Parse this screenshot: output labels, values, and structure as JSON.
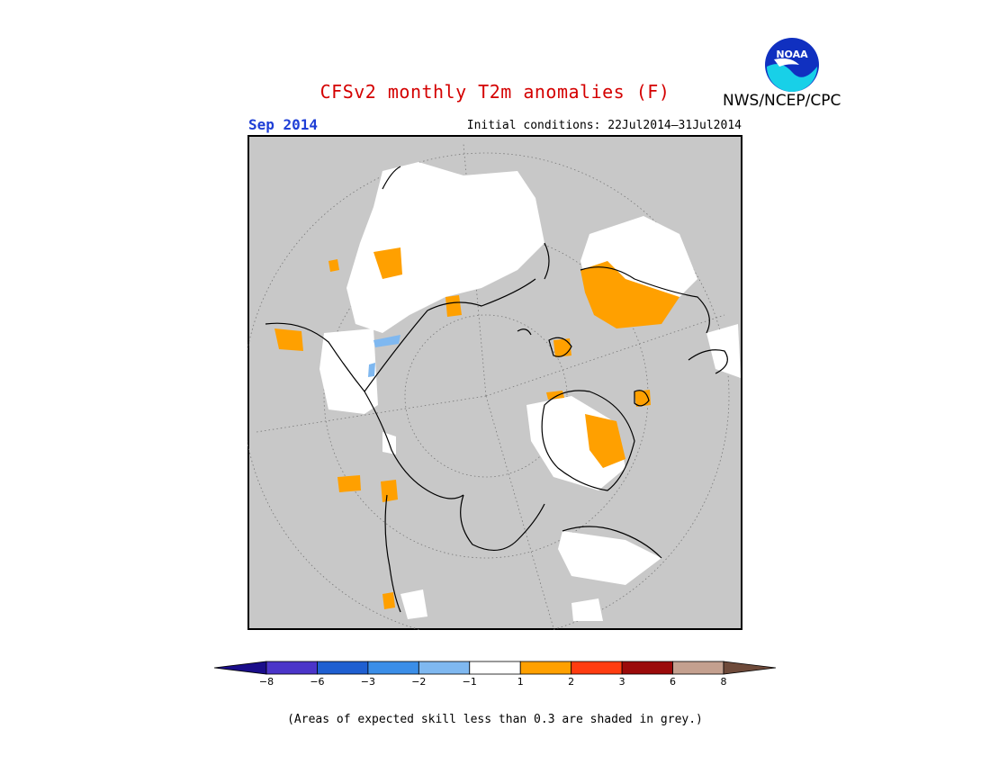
{
  "title": "CFSv2 monthly T2m anomalies (F)",
  "organization": "NWS/NCEP/CPC",
  "logo": {
    "text": "NOAA",
    "name": "noaa-logo"
  },
  "valid_month": "Sep 2014",
  "initial_conditions": "Initial conditions: 22Jul2014–31Jul2014",
  "footnote": "(Areas of expected skill less than 0.3 are shaded in grey.)",
  "colors": {
    "background_grey": "#c8c8c8",
    "neutral": "#ffffff",
    "coastline": "#000000"
  },
  "colorbar": {
    "boundaries": [
      "−8",
      "−6",
      "−3",
      "−2",
      "−1",
      "1",
      "2",
      "3",
      "6",
      "8"
    ],
    "colors": [
      "#1a0d8a",
      "#4b35c9",
      "#1f5fd1",
      "#3b8ee8",
      "#7fb8f0",
      "#ffffff",
      "#ffa000",
      "#ff3c10",
      "#9b0a0a",
      "#c4a08f",
      "#6e4a3a"
    ]
  }
}
